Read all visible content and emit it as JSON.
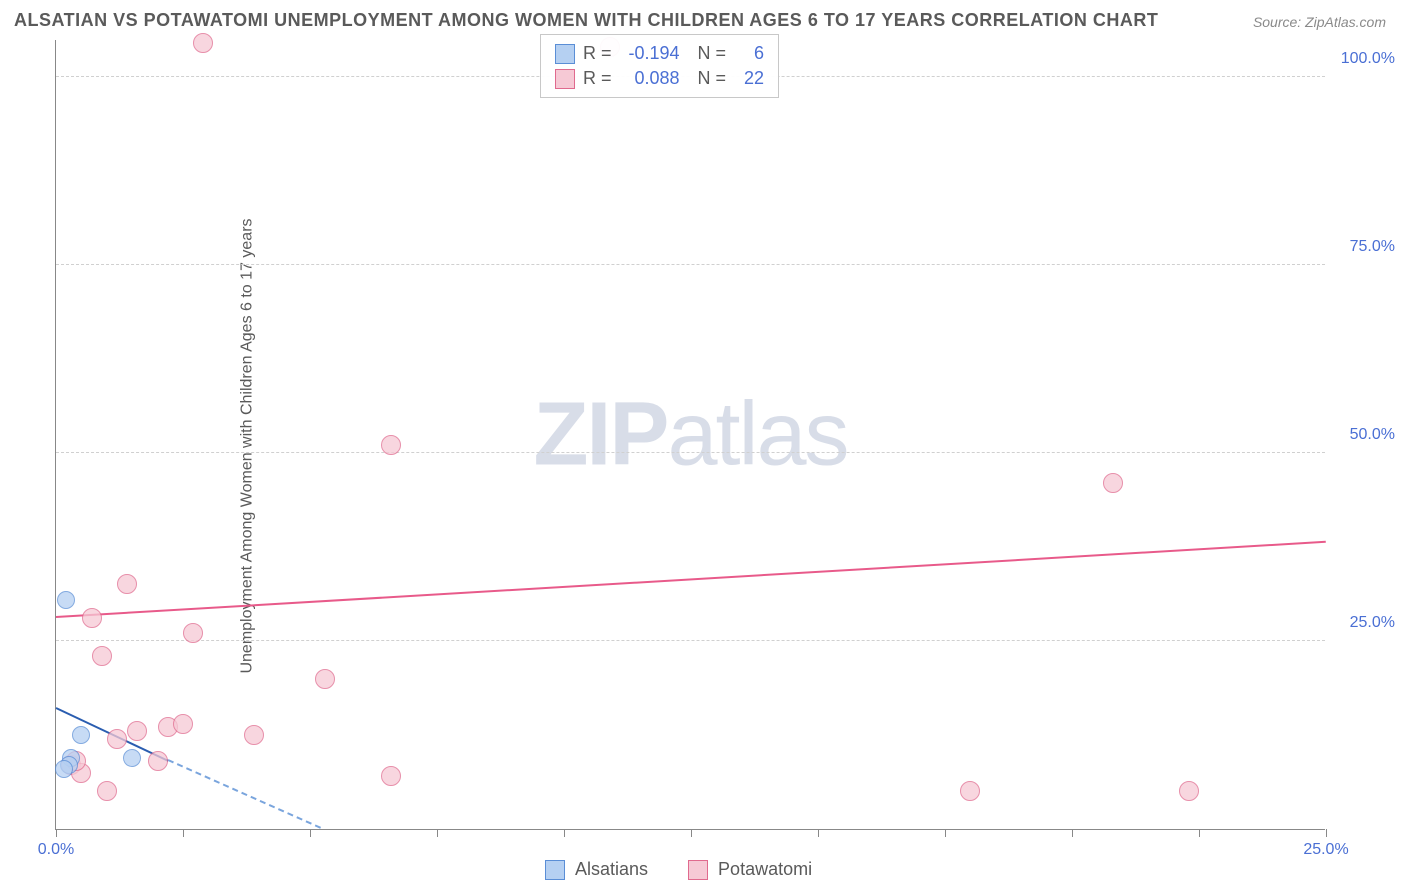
{
  "title": "ALSATIAN VS POTAWATOMI UNEMPLOYMENT AMONG WOMEN WITH CHILDREN AGES 6 TO 17 YEARS CORRELATION CHART",
  "source": "Source: ZipAtlas.com",
  "ylabel": "Unemployment Among Women with Children Ages 6 to 17 years",
  "watermark_bold": "ZIP",
  "watermark_light": "atlas",
  "chart": {
    "type": "scatter",
    "xlim": [
      0,
      25
    ],
    "ylim": [
      0,
      105
    ],
    "x_ticks": [
      0,
      2.5,
      5,
      7.5,
      10,
      12.5,
      15,
      17.5,
      20,
      22.5,
      25
    ],
    "x_tick_labels": {
      "0": "0.0%",
      "25": "25.0%"
    },
    "y_gridlines": [
      25,
      50,
      75,
      100
    ],
    "y_tick_labels": {
      "25": "25.0%",
      "50": "50.0%",
      "75": "75.0%",
      "100": "100.0%"
    },
    "grid_color": "#d0d0d0",
    "axis_color": "#888888",
    "background_color": "#ffffff",
    "tick_label_color": "#4a6fd4"
  },
  "series": {
    "alsatians": {
      "label": "Alsatians",
      "color_fill": "#b5d0f2",
      "color_stroke": "#5a8ed6",
      "marker_radius": 9,
      "R": "-0.194",
      "N": "6",
      "regression": {
        "x1": 0,
        "y1": 16,
        "x2": 2.2,
        "y2": 9,
        "color": "#2a5db0"
      },
      "extrapolation": {
        "x1": 2.2,
        "y1": 9,
        "x2": 5.2,
        "y2": 0,
        "color": "#7aa5dd"
      },
      "points": [
        {
          "x": 0.2,
          "y": 30.5
        },
        {
          "x": 0.5,
          "y": 12.5
        },
        {
          "x": 0.3,
          "y": 9.5
        },
        {
          "x": 0.25,
          "y": 8.5
        },
        {
          "x": 1.5,
          "y": 9.5
        },
        {
          "x": 0.15,
          "y": 8.0
        }
      ]
    },
    "potawatomi": {
      "label": "Potawatomi",
      "color_fill": "#f6c9d5",
      "color_stroke": "#e06a8e",
      "marker_radius": 10,
      "R": "0.088",
      "N": "22",
      "regression": {
        "x1": 0,
        "y1": 28,
        "x2": 25,
        "y2": 38,
        "color": "#e85a8a"
      },
      "points": [
        {
          "x": 2.9,
          "y": 104.5
        },
        {
          "x": 10.9,
          "y": 104
        },
        {
          "x": 6.6,
          "y": 51
        },
        {
          "x": 20.8,
          "y": 46
        },
        {
          "x": 1.4,
          "y": 32.5
        },
        {
          "x": 0.7,
          "y": 28
        },
        {
          "x": 2.7,
          "y": 26
        },
        {
          "x": 0.9,
          "y": 23
        },
        {
          "x": 5.3,
          "y": 20
        },
        {
          "x": 0.3,
          "y": 8.5
        },
        {
          "x": 0.5,
          "y": 7.5
        },
        {
          "x": 1.0,
          "y": 5
        },
        {
          "x": 1.6,
          "y": 13
        },
        {
          "x": 2.2,
          "y": 13.5
        },
        {
          "x": 2.5,
          "y": 14
        },
        {
          "x": 3.9,
          "y": 12.5
        },
        {
          "x": 6.6,
          "y": 7
        },
        {
          "x": 18.0,
          "y": 5
        },
        {
          "x": 22.3,
          "y": 5
        },
        {
          "x": 0.4,
          "y": 9
        },
        {
          "x": 1.2,
          "y": 12
        },
        {
          "x": 2.0,
          "y": 9
        }
      ]
    }
  }
}
